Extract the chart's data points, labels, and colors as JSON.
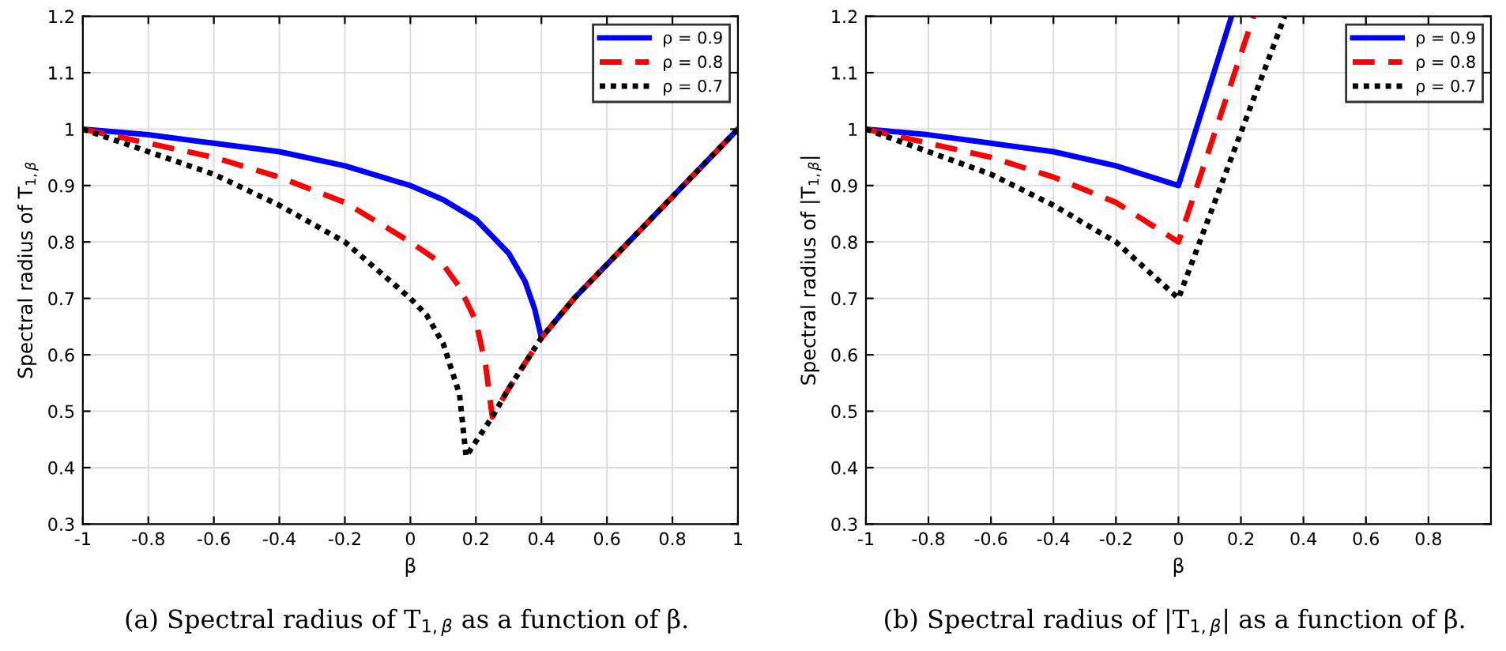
{
  "chart_data": [
    {
      "type": "line",
      "xlabel": "β",
      "ylabel": "Spectral radius of T$_{1,β}$",
      "xlim": [
        -1,
        1
      ],
      "ylim": [
        0.3,
        1.2
      ],
      "xticks": [
        -1,
        -0.8,
        -0.6,
        -0.4,
        -0.2,
        0,
        0.2,
        0.4,
        0.6,
        0.8,
        1
      ],
      "yticks": [
        0.3,
        0.4,
        0.5,
        0.6,
        0.7,
        0.8,
        0.9,
        1,
        1.1,
        1.2
      ],
      "grid": true,
      "legend": "top right",
      "annotations": [
        "(a) Spectral radius of T$_{1,β}$ as a function of β."
      ],
      "series": [
        {
          "name": "ρ = 0.9",
          "color": "#0000ff",
          "line_style": "solid",
          "x": [
            -1,
            -0.8,
            -0.6,
            -0.4,
            -0.2,
            0,
            0.1,
            0.2,
            0.3,
            0.35,
            0.38,
            0.4,
            0.5,
            0.6,
            0.7,
            0.8,
            0.9,
            1
          ],
          "values": [
            1,
            0.99,
            0.975,
            0.96,
            0.935,
            0.9,
            0.875,
            0.84,
            0.78,
            0.73,
            0.68,
            0.63,
            0.7,
            0.76,
            0.82,
            0.88,
            0.94,
            1
          ]
        },
        {
          "name": "ρ = 0.8",
          "color": "#ff0000",
          "line_style": "dashed",
          "x": [
            -1,
            -0.8,
            -0.6,
            -0.4,
            -0.2,
            0,
            0.1,
            0.15,
            0.2,
            0.23,
            0.25,
            0.3,
            0.4,
            0.5,
            0.6,
            0.7,
            0.8,
            0.9,
            1
          ],
          "values": [
            1,
            0.975,
            0.95,
            0.915,
            0.87,
            0.8,
            0.76,
            0.72,
            0.66,
            0.58,
            0.49,
            0.54,
            0.63,
            0.7,
            0.76,
            0.82,
            0.88,
            0.94,
            1
          ]
        },
        {
          "name": "ρ = 0.7",
          "color": "#000000",
          "line_style": "dotted",
          "x": [
            -1,
            -0.8,
            -0.6,
            -0.4,
            -0.2,
            0,
            0.05,
            0.1,
            0.15,
            0.17,
            0.25,
            0.3,
            0.4,
            0.5,
            0.6,
            0.7,
            0.8,
            0.9,
            1
          ],
          "values": [
            1,
            0.96,
            0.92,
            0.865,
            0.8,
            0.7,
            0.67,
            0.62,
            0.53,
            0.42,
            0.49,
            0.54,
            0.63,
            0.7,
            0.76,
            0.82,
            0.88,
            0.94,
            1
          ]
        }
      ]
    },
    {
      "type": "line",
      "xlabel": "β",
      "ylabel": "Spectral radius of |T$_{1,β}$|",
      "xlim": [
        -1,
        1
      ],
      "ylim": [
        0.3,
        1.2
      ],
      "xticks": [
        -1,
        -0.8,
        -0.6,
        -0.4,
        -0.2,
        0,
        0.2,
        0.4,
        0.6,
        0.8
      ],
      "yticks": [
        0.3,
        0.4,
        0.5,
        0.6,
        0.7,
        0.8,
        0.9,
        1,
        1.1,
        1.2
      ],
      "grid": true,
      "legend": "top right",
      "annotations": [
        "(b) Spectral radius of |T$_{1,β}$| as a function of β."
      ],
      "series": [
        {
          "name": "ρ = 0.9",
          "color": "#0000ff",
          "line_style": "solid",
          "x": [
            -1,
            -0.8,
            -0.6,
            -0.4,
            -0.2,
            0,
            0.17
          ],
          "values": [
            1,
            0.99,
            0.975,
            0.96,
            0.935,
            0.9,
            1.2
          ]
        },
        {
          "name": "ρ = 0.8",
          "color": "#ff0000",
          "line_style": "dashed",
          "x": [
            -1,
            -0.8,
            -0.6,
            -0.4,
            -0.2,
            0,
            0.24
          ],
          "values": [
            1,
            0.975,
            0.95,
            0.915,
            0.87,
            0.8,
            1.2
          ]
        },
        {
          "name": "ρ = 0.7",
          "color": "#000000",
          "line_style": "dotted",
          "x": [
            -1,
            -0.8,
            -0.6,
            -0.4,
            -0.2,
            0,
            0.34
          ],
          "values": [
            1,
            0.96,
            0.92,
            0.865,
            0.8,
            0.7,
            1.2
          ]
        }
      ]
    }
  ]
}
